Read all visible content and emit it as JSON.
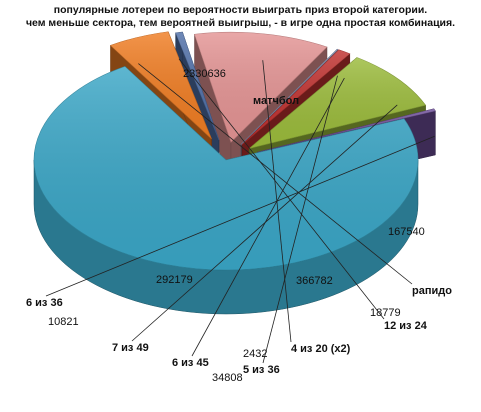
{
  "title_lines": [
    "популярные лотереи по вероятности выиграть приз второй категории.",
    "чем меньше сектора, тем вероятней выигрыш, - в игре одна простая комбинация."
  ],
  "chart_data": {
    "type": "pie",
    "style": "3d-exploded",
    "title": "популярные лотереи по вероятности выиграть приз второй категории. чем меньше сектора, тем вероятней выигрыш, - в игре одна простая комбинация.",
    "slices": [
      {
        "name": "матчбол",
        "value": 2330636,
        "color": "#3aa6c6"
      },
      {
        "name": "рапидо",
        "value": 167540,
        "color": "#f07d23"
      },
      {
        "name": "12 из 24",
        "value": 18779,
        "color": "#4f6fa8"
      },
      {
        "name": "4 из 20 (x2)",
        "value": 366782,
        "color": "#e49494"
      },
      {
        "name": "5 из 36",
        "value": 2432,
        "color": "#8f9fc4"
      },
      {
        "name": "6 из 45",
        "value": 34808,
        "color": "#c0312f"
      },
      {
        "name": "7 из 49",
        "value": 292179,
        "color": "#9bbb3b"
      },
      {
        "name": "6 из 36",
        "value": 10821,
        "color": "#6f4f9a"
      }
    ]
  }
}
